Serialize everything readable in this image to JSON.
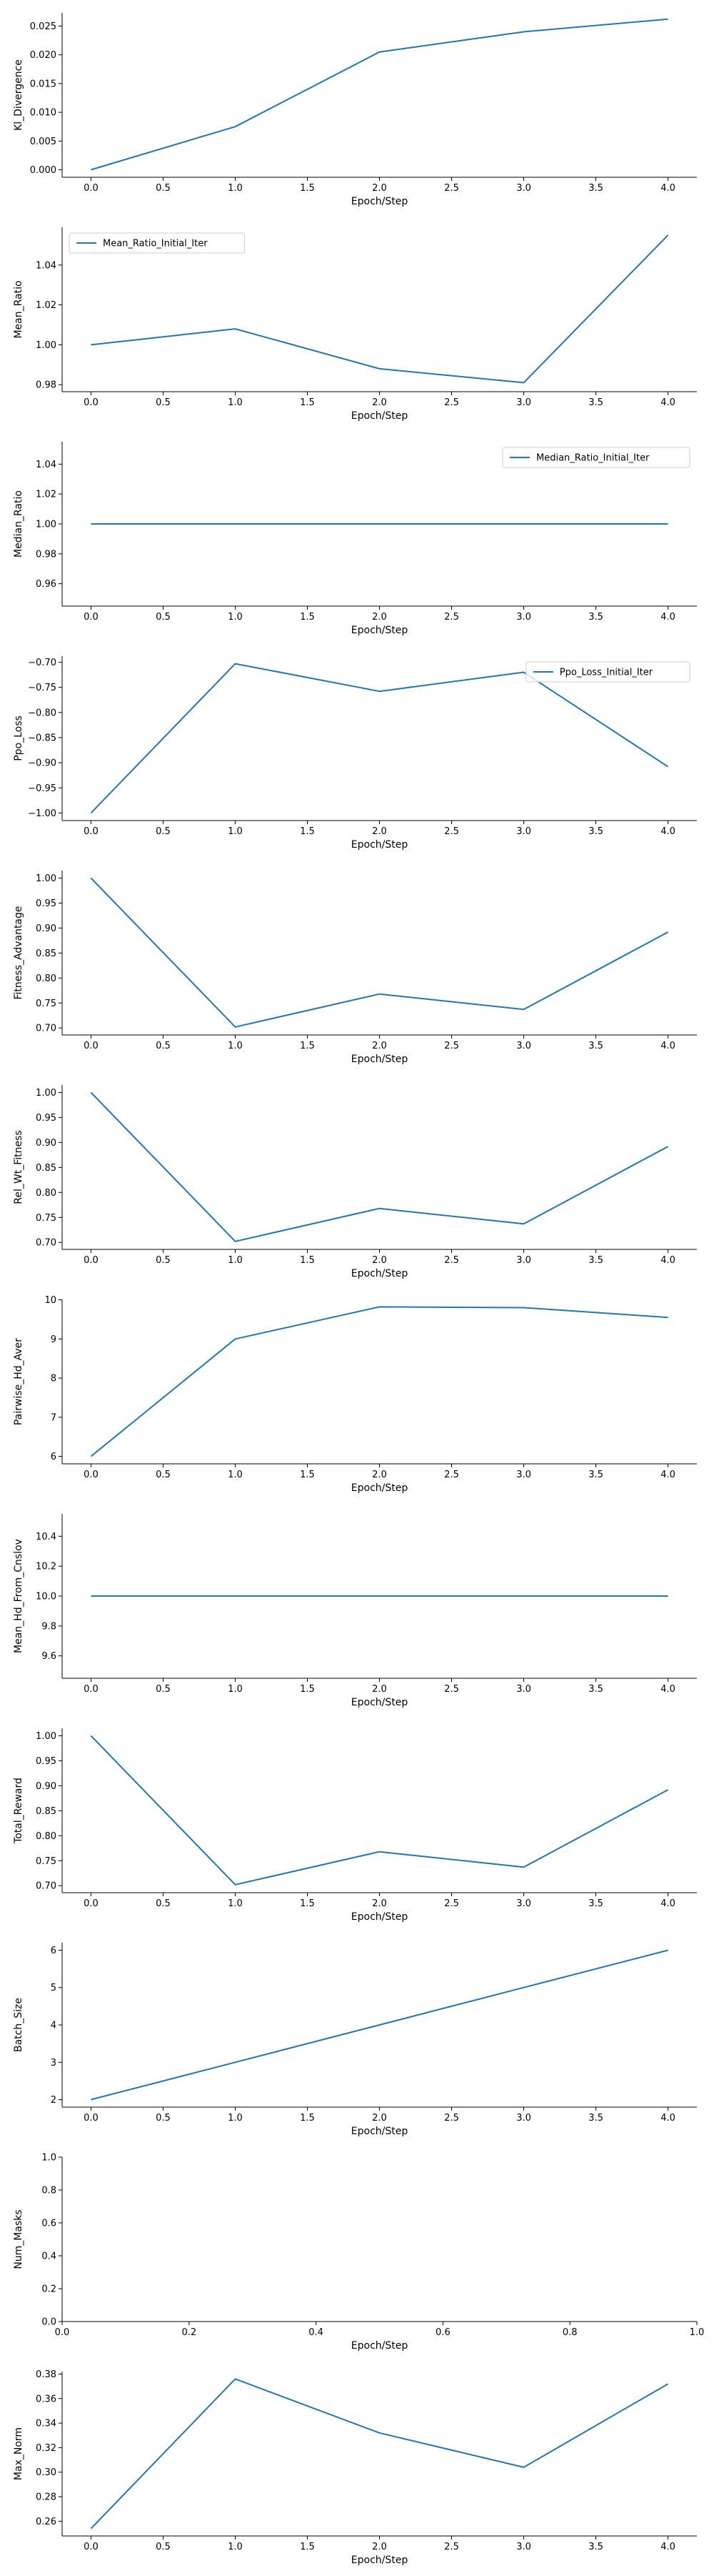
{
  "chart_data": [
    {
      "type": "line",
      "x": [
        0,
        1,
        2,
        3,
        4
      ],
      "xlabel": "Epoch/Step",
      "ylabel": "Kl_Divergence",
      "xlim": [
        -0.2,
        4.2
      ],
      "xticks": [
        0.0,
        0.5,
        1.0,
        1.5,
        2.0,
        2.5,
        3.0,
        3.5,
        4.0
      ],
      "tick_decimals_x": 1,
      "ylim": [
        -0.0013,
        0.0273
      ],
      "yticks": [
        0.0,
        0.005,
        0.01,
        0.015,
        0.02,
        0.025
      ],
      "tick_decimals_y": 3,
      "legend": null,
      "series": [
        {
          "values": [
            0.0,
            0.0075,
            0.0205,
            0.024,
            0.0262
          ]
        }
      ]
    },
    {
      "type": "line",
      "x": [
        0,
        1,
        2,
        3,
        4
      ],
      "xlabel": "Epoch/Step",
      "ylabel": "Mean_Ratio",
      "xlim": [
        -0.2,
        4.2
      ],
      "xticks": [
        0.0,
        0.5,
        1.0,
        1.5,
        2.0,
        2.5,
        3.0,
        3.5,
        4.0
      ],
      "tick_decimals_x": 1,
      "ylim": [
        0.9765,
        1.0589
      ],
      "yticks": [
        0.98,
        1.0,
        1.02,
        1.04
      ],
      "tick_decimals_y": 2,
      "legend": "upper-left",
      "series": [
        {
          "name": "Mean_Ratio_Initial_Iter",
          "values": [
            1.0,
            1.008,
            0.988,
            0.981,
            1.055
          ]
        }
      ]
    },
    {
      "type": "line",
      "x": [
        0,
        1,
        2,
        3,
        4
      ],
      "xlabel": "Epoch/Step",
      "ylabel": "Median_Ratio",
      "xlim": [
        -0.2,
        4.2
      ],
      "xticks": [
        0.0,
        0.5,
        1.0,
        1.5,
        2.0,
        2.5,
        3.0,
        3.5,
        4.0
      ],
      "tick_decimals_x": 1,
      "ylim": [
        0.945,
        1.055
      ],
      "yticks": [
        0.96,
        0.98,
        1.0,
        1.02,
        1.04
      ],
      "tick_decimals_y": 2,
      "legend": "upper-right",
      "series": [
        {
          "name": "Median_Ratio_Initial_Iter",
          "values": [
            1.0,
            1.0,
            1.0,
            1.0,
            1.0
          ]
        }
      ]
    },
    {
      "type": "line",
      "x": [
        0,
        1,
        2,
        3,
        4
      ],
      "xlabel": "Epoch/Step",
      "ylabel": "Ppo_Loss",
      "xlim": [
        -0.2,
        4.2
      ],
      "xticks": [
        0.0,
        0.5,
        1.0,
        1.5,
        2.0,
        2.5,
        3.0,
        3.5,
        4.0
      ],
      "tick_decimals_x": 1,
      "ylim": [
        -1.015,
        -0.688
      ],
      "yticks": [
        -1.0,
        -0.95,
        -0.9,
        -0.85,
        -0.8,
        -0.75,
        -0.7
      ],
      "tick_decimals_y": 2,
      "legend": "upper-right",
      "series": [
        {
          "name": "Ppo_Loss_Initial_Iter",
          "values": [
            -1.0,
            -0.703,
            -0.758,
            -0.72,
            -0.908
          ]
        }
      ]
    },
    {
      "type": "line",
      "x": [
        0,
        1,
        2,
        3,
        4
      ],
      "xlabel": "Epoch/Step",
      "ylabel": "Fitness_Advantage",
      "xlim": [
        -0.2,
        4.2
      ],
      "xticks": [
        0.0,
        0.5,
        1.0,
        1.5,
        2.0,
        2.5,
        3.0,
        3.5,
        4.0
      ],
      "tick_decimals_x": 1,
      "ylim": [
        0.686,
        1.015
      ],
      "yticks": [
        0.7,
        0.75,
        0.8,
        0.85,
        0.9,
        0.95,
        1.0
      ],
      "tick_decimals_y": 2,
      "legend": null,
      "series": [
        {
          "values": [
            1.0,
            0.702,
            0.768,
            0.737,
            0.892
          ]
        }
      ]
    },
    {
      "type": "line",
      "x": [
        0,
        1,
        2,
        3,
        4
      ],
      "xlabel": "Epoch/Step",
      "ylabel": "Rel_Wt_Fitness",
      "xlim": [
        -0.2,
        4.2
      ],
      "xticks": [
        0.0,
        0.5,
        1.0,
        1.5,
        2.0,
        2.5,
        3.0,
        3.5,
        4.0
      ],
      "tick_decimals_x": 1,
      "ylim": [
        0.686,
        1.015
      ],
      "yticks": [
        0.7,
        0.75,
        0.8,
        0.85,
        0.9,
        0.95,
        1.0
      ],
      "tick_decimals_y": 2,
      "legend": null,
      "series": [
        {
          "values": [
            1.0,
            0.702,
            0.768,
            0.737,
            0.892
          ]
        }
      ]
    },
    {
      "type": "line",
      "x": [
        0,
        1,
        2,
        3,
        4
      ],
      "xlabel": "Epoch/Step",
      "ylabel": "Pairwise_Hd_Aver",
      "xlim": [
        -0.2,
        4.2
      ],
      "xticks": [
        0.0,
        0.5,
        1.0,
        1.5,
        2.0,
        2.5,
        3.0,
        3.5,
        4.0
      ],
      "tick_decimals_x": 1,
      "ylim": [
        5.81,
        10.01
      ],
      "yticks": [
        6,
        7,
        8,
        9,
        10
      ],
      "tick_decimals_y": 0,
      "legend": null,
      "series": [
        {
          "values": [
            6.0,
            9.0,
            9.82,
            9.8,
            9.55
          ]
        }
      ]
    },
    {
      "type": "line",
      "x": [
        0,
        1,
        2,
        3,
        4
      ],
      "xlabel": "Epoch/Step",
      "ylabel": "Mean_Hd_From_Cnslov",
      "xlim": [
        -0.2,
        4.2
      ],
      "xticks": [
        0.0,
        0.5,
        1.0,
        1.5,
        2.0,
        2.5,
        3.0,
        3.5,
        4.0
      ],
      "tick_decimals_x": 1,
      "ylim": [
        9.45,
        10.55
      ],
      "yticks": [
        9.6,
        9.8,
        10.0,
        10.2,
        10.4
      ],
      "tick_decimals_y": 1,
      "legend": null,
      "series": [
        {
          "values": [
            10.0,
            10.0,
            10.0,
            10.0,
            10.0
          ]
        }
      ]
    },
    {
      "type": "line",
      "x": [
        0,
        1,
        2,
        3,
        4
      ],
      "xlabel": "Epoch/Step",
      "ylabel": "Total_Reward",
      "xlim": [
        -0.2,
        4.2
      ],
      "xticks": [
        0.0,
        0.5,
        1.0,
        1.5,
        2.0,
        2.5,
        3.0,
        3.5,
        4.0
      ],
      "tick_decimals_x": 1,
      "ylim": [
        0.686,
        1.015
      ],
      "yticks": [
        0.7,
        0.75,
        0.8,
        0.85,
        0.9,
        0.95,
        1.0
      ],
      "tick_decimals_y": 2,
      "legend": null,
      "series": [
        {
          "values": [
            1.0,
            0.702,
            0.768,
            0.737,
            0.892
          ]
        }
      ]
    },
    {
      "type": "line",
      "x": [
        0,
        1,
        2,
        3,
        4
      ],
      "xlabel": "Epoch/Step",
      "ylabel": "Batch_Size",
      "xlim": [
        -0.2,
        4.2
      ],
      "xticks": [
        0.0,
        0.5,
        1.0,
        1.5,
        2.0,
        2.5,
        3.0,
        3.5,
        4.0
      ],
      "tick_decimals_x": 1,
      "ylim": [
        1.8,
        6.2
      ],
      "yticks": [
        2,
        3,
        4,
        5,
        6
      ],
      "tick_decimals_y": 0,
      "legend": null,
      "series": [
        {
          "values": [
            2,
            3,
            4,
            5,
            6
          ]
        }
      ]
    },
    {
      "type": "line",
      "x": [],
      "xlabel": "Epoch/Step",
      "ylabel": "Num_Masks",
      "xlim": [
        0.0,
        1.0
      ],
      "xticks": [
        0.0,
        0.2,
        0.4,
        0.6,
        0.8,
        1.0
      ],
      "tick_decimals_x": 1,
      "ylim": [
        0.0,
        1.0
      ],
      "yticks": [
        0.0,
        0.2,
        0.4,
        0.6,
        0.8,
        1.0
      ],
      "tick_decimals_y": 1,
      "legend": null,
      "series": []
    },
    {
      "type": "line",
      "x": [
        0,
        1,
        2,
        3,
        4
      ],
      "xlabel": "Epoch/Step",
      "ylabel": "Max_Norm",
      "xlim": [
        -0.2,
        4.2
      ],
      "xticks": [
        0.0,
        0.5,
        1.0,
        1.5,
        2.0,
        2.5,
        3.0,
        3.5,
        4.0
      ],
      "tick_decimals_x": 1,
      "ylim": [
        0.248,
        0.382
      ],
      "yticks": [
        0.26,
        0.28,
        0.3,
        0.32,
        0.34,
        0.36,
        0.38
      ],
      "tick_decimals_y": 2,
      "legend": null,
      "series": [
        {
          "values": [
            0.254,
            0.376,
            0.332,
            0.304,
            0.372
          ]
        }
      ]
    }
  ],
  "colors": {
    "line": "#1f77b4",
    "axis": "#000000",
    "legend_border": "#cccccc"
  }
}
